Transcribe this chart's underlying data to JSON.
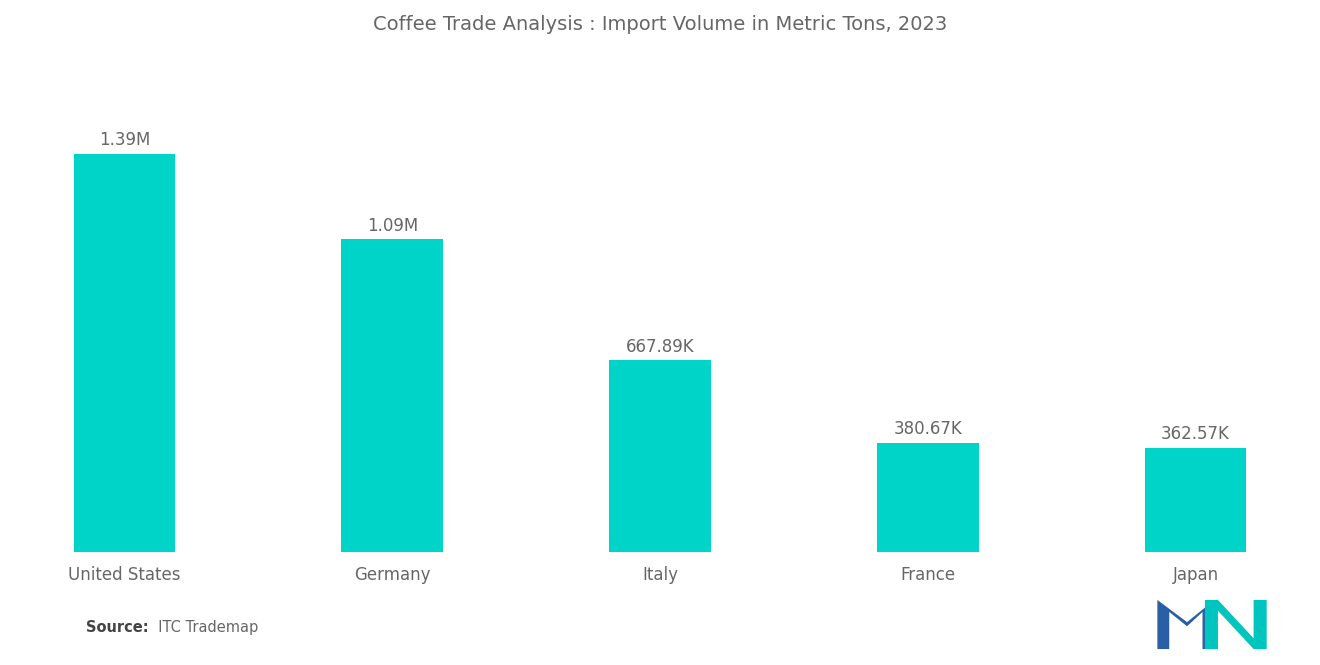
{
  "title": "Coffee Trade Analysis : Import Volume in Metric Tons, 2023",
  "categories": [
    "United States",
    "Germany",
    "Italy",
    "France",
    "Japan"
  ],
  "values": [
    1390000,
    1090000,
    667890,
    380670,
    362570
  ],
  "labels": [
    "1.39M",
    "1.09M",
    "667.89K",
    "380.67K",
    "362.57K"
  ],
  "bar_color": "#00D4C8",
  "background_color": "#ffffff",
  "title_color": "#666666",
  "label_color": "#666666",
  "xticklabel_color": "#666666",
  "source_bold": "Source:",
  "source_rest": "  ITC Trademap",
  "ylim": [
    0,
    1700000
  ],
  "bar_width": 0.38,
  "title_fontsize": 14,
  "label_fontsize": 12,
  "xticklabel_fontsize": 12,
  "logo_blue": "#2a5fa5",
  "logo_teal": "#00c4be"
}
